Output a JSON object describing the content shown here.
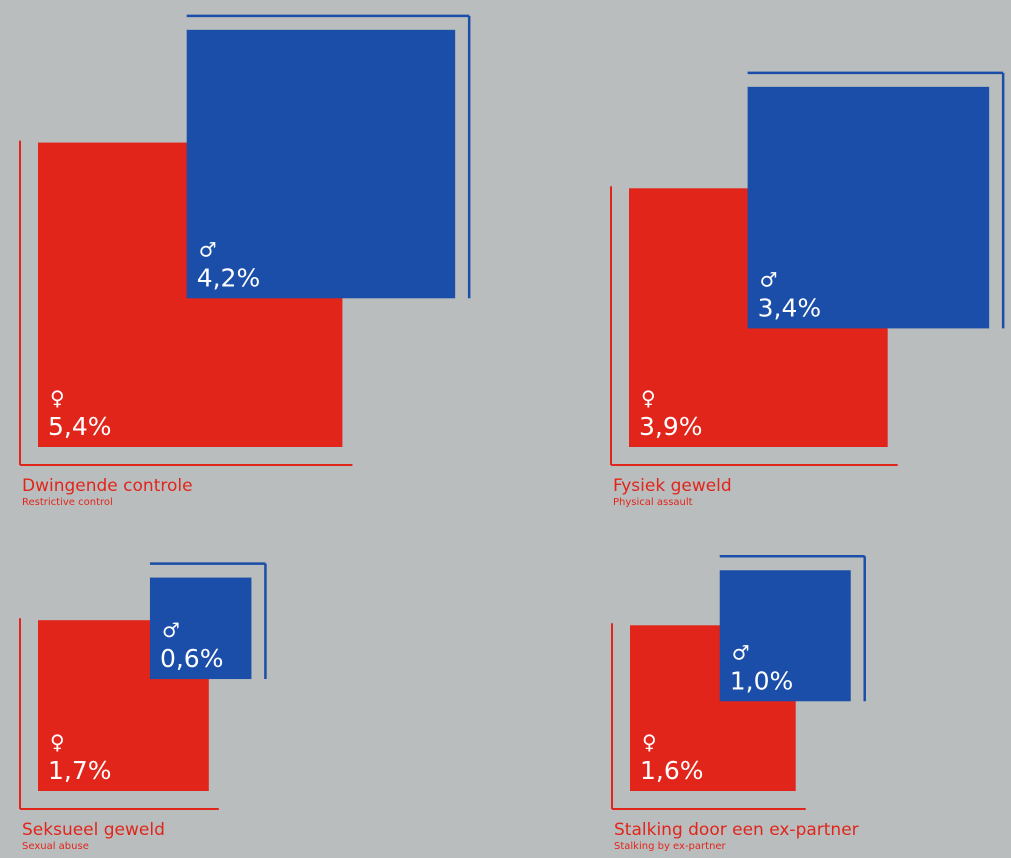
{
  "colors": {
    "female": "#e1251b",
    "male": "#1a4ea8",
    "background": "#b9bdbe"
  },
  "symbols": {
    "female": "♀",
    "male": "♂"
  },
  "chart_data": [
    {
      "type": "area",
      "title": "Dwingende controle",
      "subtitle": "Restrictive control",
      "series": [
        {
          "name": "♀",
          "value": 5.4,
          "label": "5,4%"
        },
        {
          "name": "♂",
          "value": 4.2,
          "label": "4,2%"
        }
      ]
    },
    {
      "type": "area",
      "title": "Fysiek geweld",
      "subtitle": "Physical assault",
      "series": [
        {
          "name": "♀",
          "value": 3.9,
          "label": "3,9%"
        },
        {
          "name": "♂",
          "value": 3.4,
          "label": "3,4%"
        }
      ]
    },
    {
      "type": "area",
      "title": "Seksueel geweld",
      "subtitle": "Sexual abuse",
      "series": [
        {
          "name": "♀",
          "value": 1.7,
          "label": "1,7%"
        },
        {
          "name": "♂",
          "value": 0.6,
          "label": "0,6%"
        }
      ]
    },
    {
      "type": "area",
      "title": "Stalking door een ex-partner",
      "subtitle": "Stalking by ex-partner",
      "series": [
        {
          "name": "♀",
          "value": 1.6,
          "label": "1,6%"
        },
        {
          "name": "♂",
          "value": 1.0,
          "label": "1,0%"
        }
      ]
    }
  ]
}
